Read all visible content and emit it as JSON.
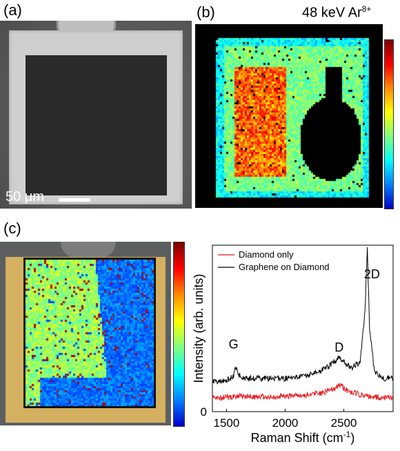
{
  "panels": {
    "a": "(a)",
    "b": "(b)",
    "c": "(c)"
  },
  "sem": {
    "scale_bar_label": "50 μm"
  },
  "map_b": {
    "ion_label": "48 keV Ar",
    "ion_charge": "8+"
  },
  "colors": {
    "diamond_only": "#e8161b",
    "graphene_on_diamond": "#000000"
  },
  "chart_data": {
    "type": "line",
    "xlabel": "Raman Shift (cm",
    "xlabel_sup": "-1",
    "xlabel_close": ")",
    "ylabel": "Intensity (arb. units)",
    "x_ticks": [
      1500,
      2000,
      2500
    ],
    "y_ticks": [
      0
    ],
    "xlim": [
      1380,
      2920
    ],
    "ylim": [
      0,
      1
    ],
    "legend_position": "top-left",
    "series": [
      {
        "name": "Diamond only",
        "color": "#e8161b",
        "x": [
          1380,
          1500,
          1580,
          1700,
          1900,
          2100,
          2300,
          2420,
          2470,
          2520,
          2600,
          2700,
          2800,
          2920
        ],
        "y": [
          0.08,
          0.085,
          0.09,
          0.09,
          0.09,
          0.095,
          0.11,
          0.14,
          0.16,
          0.13,
          0.11,
          0.09,
          0.085,
          0.085
        ]
      },
      {
        "name": "Graphene on Diamond",
        "color": "#000000",
        "x": [
          1380,
          1500,
          1560,
          1580,
          1600,
          1650,
          1800,
          2000,
          2200,
          2350,
          2420,
          2460,
          2500,
          2560,
          2640,
          2680,
          2700,
          2720,
          2760,
          2850,
          2920
        ],
        "y": [
          0.18,
          0.19,
          0.21,
          0.28,
          0.22,
          0.2,
          0.2,
          0.2,
          0.22,
          0.26,
          0.3,
          0.33,
          0.3,
          0.26,
          0.3,
          0.6,
          0.98,
          0.5,
          0.24,
          0.2,
          0.2
        ]
      }
    ],
    "annotations": [
      {
        "text": "G",
        "x": 1560,
        "y": 0.38
      },
      {
        "text": "D",
        "x": 2460,
        "y": 0.36
      },
      {
        "text": "2D",
        "x": 2740,
        "y": 0.8
      }
    ]
  }
}
